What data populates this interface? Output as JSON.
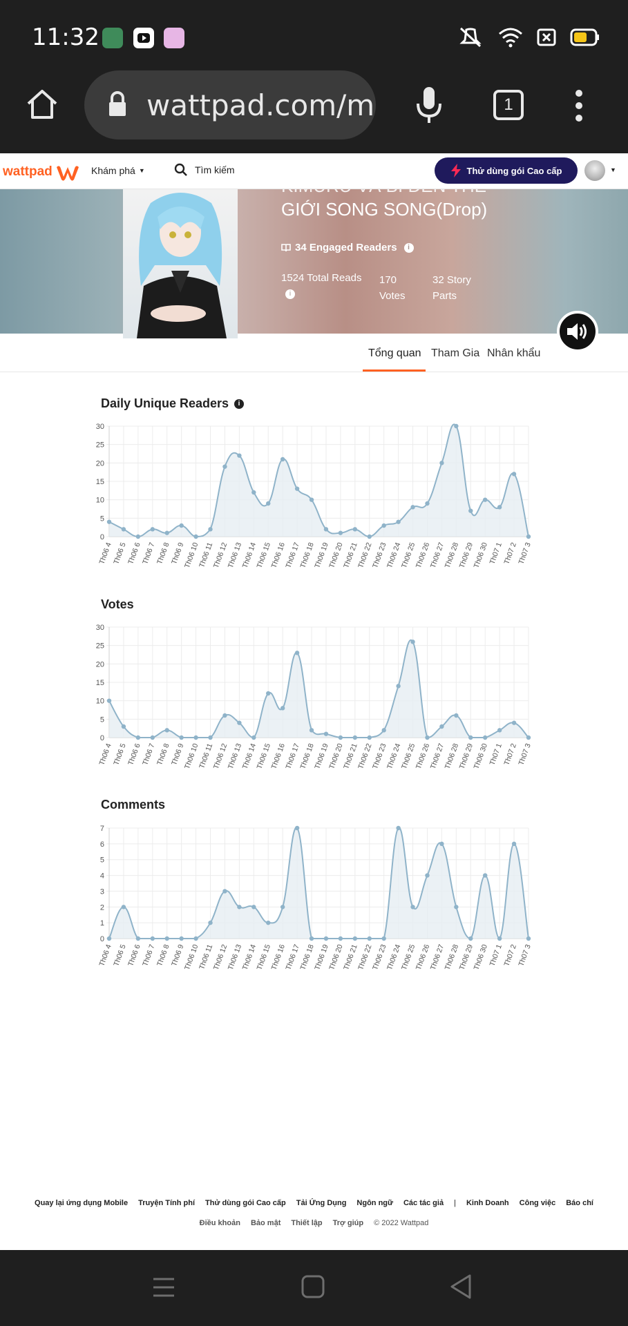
{
  "status_bar": {
    "time": "11:32"
  },
  "browser": {
    "url": "wattpad.com/myworks/",
    "tab_count": "1"
  },
  "navbar": {
    "logo": "wattpad",
    "explore": "Khám phá",
    "search_placeholder": "Tìm kiếm",
    "premium_button": "Thử dùng gói Cao cấp",
    "brand_color": "#ff6122",
    "premium_color": "#1f1a5c"
  },
  "story": {
    "title_line1": "KIMURU VÀ BI ĐẾN THẾ",
    "title_line2": "GIỚI SONG SONG(Drop)",
    "engaged_readers": "34 Engaged Readers",
    "total_reads": "1524 Total Reads",
    "votes": "170",
    "votes_label": "Votes",
    "story_parts": "32 Story",
    "story_parts_label": "Parts"
  },
  "tabs": [
    {
      "label": "Tổng quan",
      "active": true
    },
    {
      "label": "Tham Gia",
      "active": false
    },
    {
      "label": "Nhân khẩu",
      "active": false
    }
  ],
  "chart_data": [
    {
      "type": "area",
      "title": "Daily Unique Readers",
      "categories": [
        "Th06 4",
        "Th06 5",
        "Th06 6",
        "Th06 7",
        "Th06 8",
        "Th06 9",
        "Th06 10",
        "Th06 11",
        "Th06 12",
        "Th06 13",
        "Th06 14",
        "Th06 15",
        "Th06 16",
        "Th06 17",
        "Th06 18",
        "Th06 19",
        "Th06 20",
        "Th06 21",
        "Th06 22",
        "Th06 23",
        "Th06 24",
        "Th06 25",
        "Th06 26",
        "Th06 27",
        "Th06 28",
        "Th06 29",
        "Th06 30",
        "Th07 1",
        "Th07 2",
        "Th07 3"
      ],
      "values": [
        4,
        2,
        0,
        2,
        1,
        3,
        0,
        2,
        19,
        22,
        12,
        9,
        21,
        13,
        10,
        2,
        1,
        2,
        0,
        3,
        4,
        8,
        9,
        20,
        30,
        7,
        10,
        8,
        17,
        0
      ],
      "ylim": [
        0,
        30
      ],
      "yticks": [
        0,
        5,
        10,
        15,
        20,
        25,
        30
      ],
      "grid": true
    },
    {
      "type": "area",
      "title": "Votes",
      "categories": [
        "Th06 4",
        "Th06 5",
        "Th06 6",
        "Th06 7",
        "Th06 8",
        "Th06 9",
        "Th06 10",
        "Th06 11",
        "Th06 12",
        "Th06 13",
        "Th06 14",
        "Th06 15",
        "Th06 16",
        "Th06 17",
        "Th06 18",
        "Th06 19",
        "Th06 20",
        "Th06 21",
        "Th06 22",
        "Th06 23",
        "Th06 24",
        "Th06 25",
        "Th06 26",
        "Th06 27",
        "Th06 28",
        "Th06 29",
        "Th06 30",
        "Th07 1",
        "Th07 2",
        "Th07 3"
      ],
      "values": [
        10,
        3,
        0,
        0,
        2,
        0,
        0,
        0,
        6,
        4,
        0,
        12,
        8,
        23,
        2,
        1,
        0,
        0,
        0,
        2,
        14,
        26,
        0,
        3,
        6,
        0,
        0,
        2,
        4,
        0
      ],
      "ylim": [
        0,
        30
      ],
      "yticks": [
        0,
        5,
        10,
        15,
        20,
        25,
        30
      ],
      "grid": true
    },
    {
      "type": "area",
      "title": "Comments",
      "categories": [
        "Th06 4",
        "Th06 5",
        "Th06 6",
        "Th06 7",
        "Th06 8",
        "Th06 9",
        "Th06 10",
        "Th06 11",
        "Th06 12",
        "Th06 13",
        "Th06 14",
        "Th06 15",
        "Th06 16",
        "Th06 17",
        "Th06 18",
        "Th06 19",
        "Th06 20",
        "Th06 21",
        "Th06 22",
        "Th06 23",
        "Th06 24",
        "Th06 25",
        "Th06 26",
        "Th06 27",
        "Th06 28",
        "Th06 29",
        "Th06 30",
        "Th07 1",
        "Th07 2",
        "Th07 3"
      ],
      "values": [
        0,
        2,
        0,
        0,
        0,
        0,
        0,
        1,
        3,
        2,
        2,
        1,
        2,
        7,
        0,
        0,
        0,
        0,
        0,
        0,
        7,
        2,
        4,
        6,
        2,
        0,
        4,
        0,
        6,
        0
      ],
      "ylim": [
        0,
        7
      ],
      "yticks": [
        0,
        1,
        2,
        3,
        4,
        5,
        6,
        7
      ],
      "grid": true
    }
  ],
  "chart_colors": {
    "line": "#8fb3c9",
    "fill": "#e6eef3",
    "point": "#8fb3c9",
    "grid": "#ececec"
  },
  "footer": {
    "links1": [
      "Quay lại ứng dụng Mobile",
      "Truyện Tính phí",
      "Thử dùng gói Cao cấp",
      "Tải Ứng Dụng",
      "Ngôn ngữ",
      "Các tác giả",
      "|",
      "Kinh Doanh",
      "Công việc",
      "Báo chí"
    ],
    "links2": [
      "Điều khoản",
      "Bảo mật",
      "Thiết lập",
      "Trợ giúp",
      "© 2022 Wattpad"
    ]
  }
}
